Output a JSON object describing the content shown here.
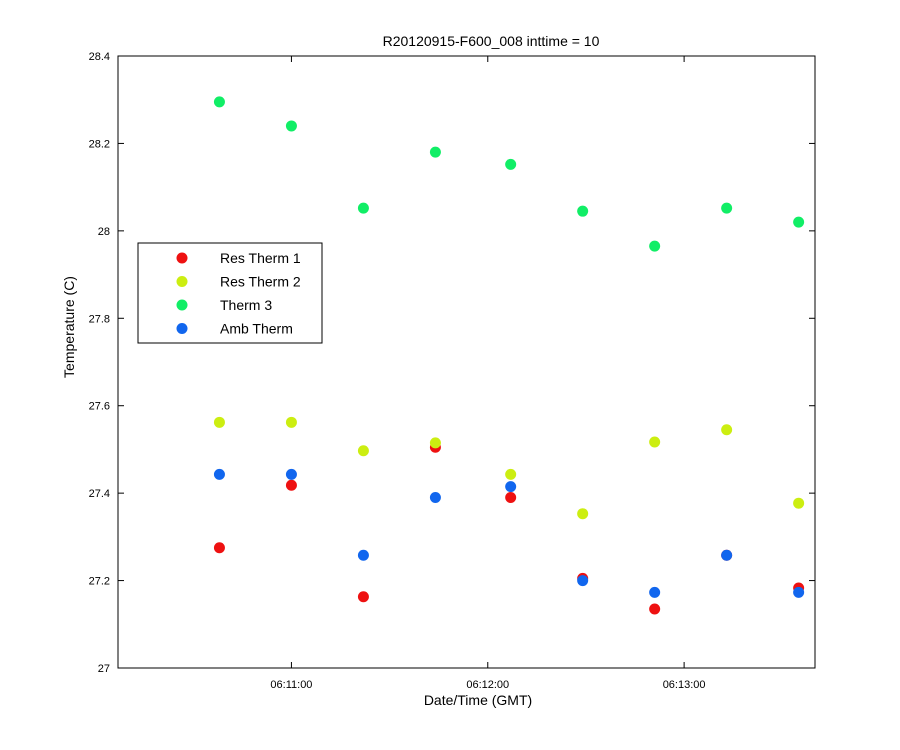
{
  "chart_data": {
    "type": "scatter",
    "title": "R20120915-F600_008 inttime = 10",
    "xlabel": "Date/Time (GMT)",
    "ylabel": "Temperature (C)",
    "xlim": [
      "06:10:07",
      "06:13:40"
    ],
    "ylim": [
      27,
      28.4
    ],
    "x_ticks": [
      "06:11:00",
      "06:12:00",
      "06:13:00"
    ],
    "y_ticks": [
      "27",
      "27.2",
      "27.4",
      "27.6",
      "27.8",
      "28",
      "28.2",
      "28.4"
    ],
    "grid": false,
    "legend_position": "center-left",
    "x": [
      "06:10:38",
      "06:11:00",
      "06:11:22",
      "06:11:44",
      "06:12:07",
      "06:12:29",
      "06:12:51",
      "06:13:13",
      "06:13:35"
    ],
    "series": [
      {
        "name": "Res Therm 1",
        "color": "#ee1111",
        "values": [
          27.275,
          27.418,
          27.163,
          27.505,
          27.39,
          27.205,
          27.135,
          27.258,
          27.183
        ]
      },
      {
        "name": "Res Therm 2",
        "color": "#ccee11",
        "values": [
          27.562,
          27.562,
          27.497,
          27.515,
          27.443,
          27.353,
          27.517,
          27.545,
          27.377
        ]
      },
      {
        "name": "Therm 3",
        "color": "#11ee66",
        "values": [
          28.295,
          28.24,
          28.052,
          28.18,
          28.152,
          28.045,
          27.965,
          28.052,
          28.02
        ]
      },
      {
        "name": "Amb Therm",
        "color": "#1166ee",
        "values": [
          27.443,
          27.443,
          27.258,
          27.39,
          27.415,
          27.2,
          27.173,
          27.258,
          27.173
        ]
      }
    ]
  }
}
